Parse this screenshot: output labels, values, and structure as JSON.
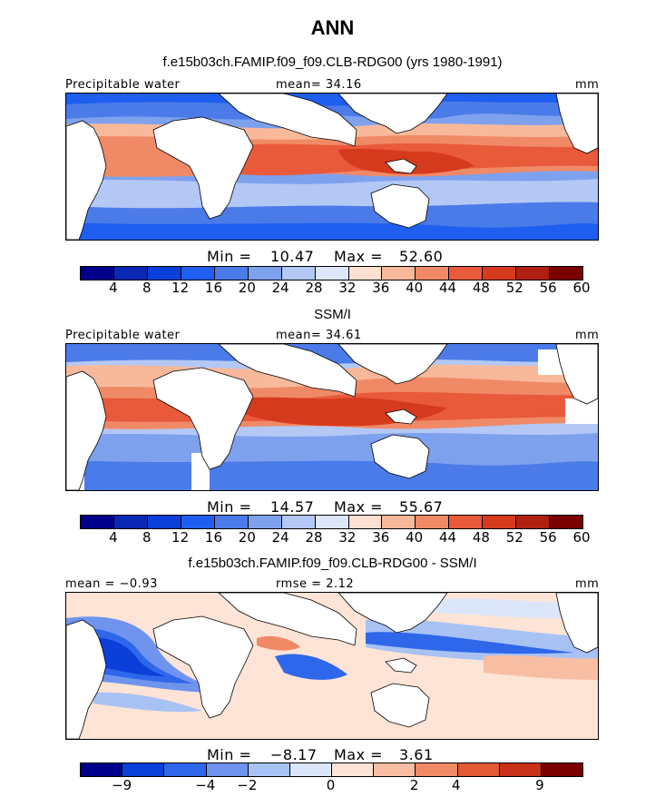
{
  "title": "ANN",
  "panels": [
    {
      "header": "f.e15b03ch.FAMIP.f09_f09.CLB-RDG00 (yrs 1980-1991)",
      "left_label": "Precipitable water",
      "mid_label": "mean=  34.16",
      "right_label": "mm",
      "min_label": "Min =",
      "min_value": "10.47",
      "max_label": "Max =",
      "max_value": "52.60",
      "colorbar_ticks": [
        "4",
        "8",
        "12",
        "16",
        "20",
        "24",
        "28",
        "32",
        "36",
        "40",
        "44",
        "48",
        "52",
        "56",
        "60"
      ]
    },
    {
      "header": "SSM/I",
      "left_label": "Precipitable water",
      "mid_label": "mean=  34.61",
      "right_label": "mm",
      "min_label": "Min =",
      "min_value": "14.57",
      "max_label": "Max =",
      "max_value": "55.67",
      "colorbar_ticks": [
        "4",
        "8",
        "12",
        "16",
        "20",
        "24",
        "28",
        "32",
        "36",
        "40",
        "44",
        "48",
        "52",
        "56",
        "60"
      ]
    },
    {
      "header": "f.e15b03ch.FAMIP.f09_f09.CLB-RDG00 - SSM/I",
      "left_label": "mean =  −0.93",
      "mid_label": "rmse =   2.12",
      "right_label": "mm",
      "min_label": "Min =",
      "min_value": "−8.17",
      "max_label": "Max =",
      "max_value": "3.61",
      "colorbar_ticks": [
        "−9",
        "−4",
        "−2",
        "0",
        "2",
        "4",
        "9"
      ]
    }
  ],
  "colors": {
    "scale": [
      "#00008b",
      "#0a28b4",
      "#0b3fd9",
      "#1e5ef0",
      "#4a7be8",
      "#7ea1ee",
      "#b3c8f5",
      "#dde6fb",
      "#fde0d0",
      "#f8b99b",
      "#f08a66",
      "#e85a3a",
      "#d63a1c",
      "#b02010",
      "#7a0000"
    ],
    "diff_scale": [
      "#00008b",
      "#0b3fd9",
      "#2f67eb",
      "#6e94ee",
      "#a9c2f4",
      "#dce6fb",
      "#fde4d6",
      "#f8bea3",
      "#f08a66",
      "#e25a36",
      "#c8321a",
      "#7a0000"
    ],
    "land": "#ffffff"
  }
}
